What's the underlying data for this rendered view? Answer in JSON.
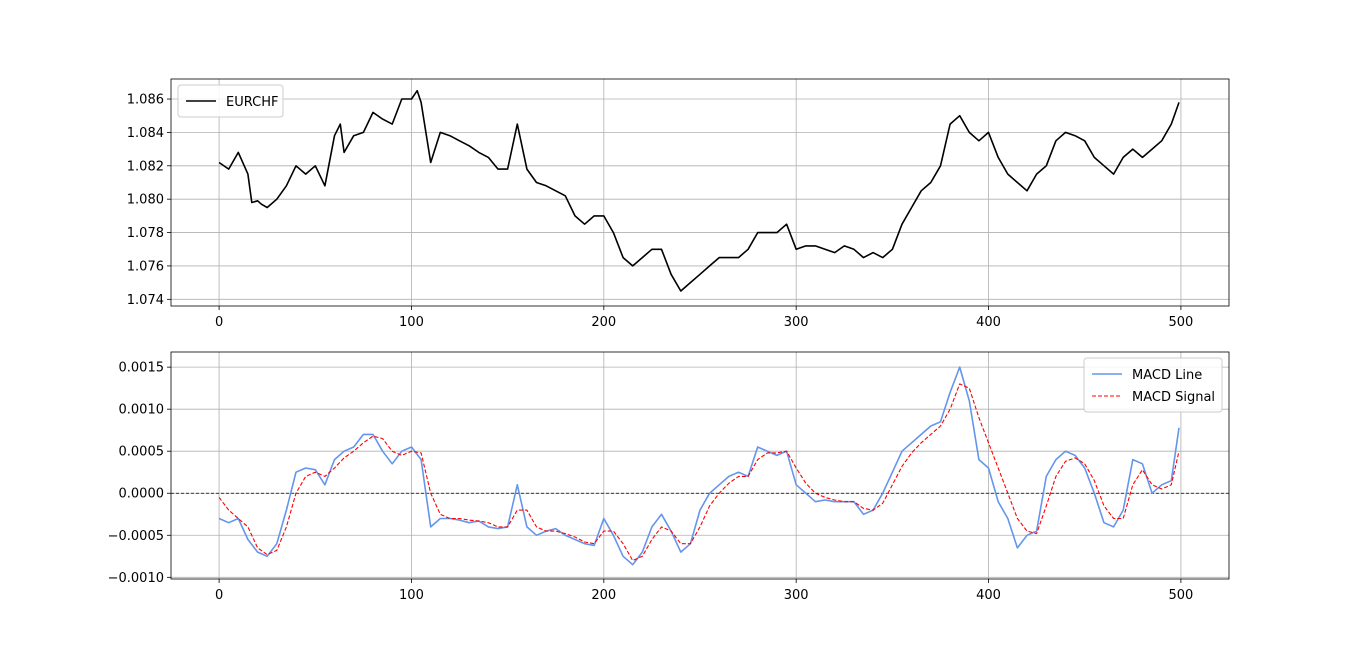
{
  "chart_data": [
    {
      "type": "line",
      "title": "",
      "xlabel": "",
      "ylabel": "",
      "xlim": [
        -25,
        525
      ],
      "ylim": [
        1.0736,
        1.0872
      ],
      "grid": true,
      "legend_position": "top-left",
      "x_ticks": [
        0,
        100,
        200,
        300,
        400,
        500
      ],
      "x_tick_labels": [
        "0",
        "100",
        "200",
        "300",
        "400",
        "500"
      ],
      "y_ticks": [
        1.074,
        1.076,
        1.078,
        1.08,
        1.082,
        1.084,
        1.086
      ],
      "y_tick_labels": [
        "1.074",
        "1.076",
        "1.078",
        "1.080",
        "1.082",
        "1.084",
        "1.086"
      ],
      "series": [
        {
          "name": "EURCHF",
          "color": "#000000",
          "dash": "solid",
          "x": [
            0,
            5,
            10,
            15,
            17,
            20,
            22,
            25,
            30,
            35,
            40,
            45,
            50,
            55,
            60,
            63,
            65,
            70,
            75,
            80,
            85,
            90,
            95,
            100,
            103,
            105,
            110,
            115,
            120,
            125,
            130,
            135,
            140,
            145,
            150,
            155,
            160,
            165,
            170,
            175,
            180,
            185,
            190,
            195,
            200,
            205,
            210,
            215,
            220,
            225,
            230,
            235,
            240,
            245,
            250,
            255,
            260,
            265,
            270,
            275,
            280,
            285,
            290,
            295,
            300,
            305,
            310,
            315,
            320,
            325,
            330,
            335,
            340,
            345,
            350,
            355,
            360,
            365,
            370,
            375,
            380,
            385,
            390,
            395,
            400,
            405,
            410,
            415,
            420,
            425,
            430,
            435,
            440,
            445,
            450,
            455,
            460,
            465,
            470,
            475,
            480,
            485,
            490,
            495,
            499
          ],
          "values": [
            1.0822,
            1.0818,
            1.0828,
            1.0815,
            1.0798,
            1.0799,
            1.0797,
            1.0795,
            1.08,
            1.0808,
            1.082,
            1.0815,
            1.082,
            1.0808,
            1.0838,
            1.0845,
            1.0828,
            1.0838,
            1.084,
            1.0852,
            1.0848,
            1.0845,
            1.086,
            1.086,
            1.0865,
            1.0858,
            1.0822,
            1.084,
            1.0838,
            1.0835,
            1.0832,
            1.0828,
            1.0825,
            1.0818,
            1.0818,
            1.0845,
            1.0818,
            1.081,
            1.0808,
            1.0805,
            1.0802,
            1.079,
            1.0785,
            1.079,
            1.079,
            1.078,
            1.0765,
            1.076,
            1.0765,
            1.077,
            1.077,
            1.0755,
            1.0745,
            1.075,
            1.0755,
            1.076,
            1.0765,
            1.0765,
            1.0765,
            1.077,
            1.078,
            1.078,
            1.078,
            1.0785,
            1.077,
            1.0772,
            1.0772,
            1.077,
            1.0768,
            1.0772,
            1.077,
            1.0765,
            1.0768,
            1.0765,
            1.077,
            1.0785,
            1.0795,
            1.0805,
            1.081,
            1.082,
            1.0845,
            1.085,
            1.084,
            1.0835,
            1.084,
            1.0825,
            1.0815,
            1.081,
            1.0805,
            1.0815,
            1.082,
            1.0835,
            1.084,
            1.0838,
            1.0835,
            1.0825,
            1.082,
            1.0815,
            1.0825,
            1.083,
            1.0825,
            1.083,
            1.0835,
            1.0845,
            1.0858
          ]
        }
      ]
    },
    {
      "type": "line",
      "title": "",
      "xlabel": "",
      "ylabel": "",
      "xlim": [
        -25,
        525
      ],
      "ylim": [
        -0.00102,
        0.00168
      ],
      "grid": true,
      "legend_position": "top-right",
      "zero_line": {
        "y": 0,
        "color": "#000000",
        "dash": "dashed"
      },
      "x_ticks": [
        0,
        100,
        200,
        300,
        400,
        500
      ],
      "x_tick_labels": [
        "0",
        "100",
        "200",
        "300",
        "400",
        "500"
      ],
      "y_ticks": [
        -0.001,
        -0.0005,
        0.0,
        0.0005,
        0.001,
        0.0015
      ],
      "y_tick_labels": [
        "−0.0010",
        "−0.0005",
        "0.0000",
        "0.0005",
        "0.0010",
        "0.0015"
      ],
      "series": [
        {
          "name": "MACD Line",
          "color": "#6495ed",
          "dash": "solid",
          "x": [
            0,
            5,
            10,
            15,
            20,
            25,
            30,
            35,
            40,
            45,
            50,
            55,
            60,
            65,
            70,
            75,
            80,
            85,
            90,
            95,
            100,
            105,
            110,
            115,
            120,
            125,
            130,
            135,
            140,
            145,
            150,
            155,
            160,
            165,
            170,
            175,
            180,
            185,
            190,
            195,
            200,
            205,
            210,
            215,
            220,
            225,
            230,
            235,
            240,
            245,
            250,
            255,
            260,
            265,
            270,
            275,
            280,
            285,
            290,
            295,
            300,
            305,
            310,
            315,
            320,
            325,
            330,
            335,
            340,
            345,
            350,
            355,
            360,
            365,
            370,
            375,
            380,
            385,
            390,
            395,
            400,
            405,
            410,
            415,
            420,
            425,
            430,
            435,
            440,
            445,
            450,
            455,
            460,
            465,
            470,
            475,
            480,
            485,
            490,
            495,
            499
          ],
          "values": [
            -0.0003,
            -0.00035,
            -0.0003,
            -0.00055,
            -0.0007,
            -0.00075,
            -0.0006,
            -0.0002,
            0.00025,
            0.0003,
            0.00028,
            0.0001,
            0.0004,
            0.0005,
            0.00055,
            0.0007,
            0.0007,
            0.0005,
            0.00035,
            0.0005,
            0.00055,
            0.0004,
            -0.0004,
            -0.0003,
            -0.0003,
            -0.00032,
            -0.00035,
            -0.00033,
            -0.0004,
            -0.00042,
            -0.0004,
            0.0001,
            -0.0004,
            -0.0005,
            -0.00045,
            -0.00042,
            -0.0005,
            -0.00055,
            -0.0006,
            -0.00062,
            -0.0003,
            -0.0005,
            -0.00075,
            -0.00085,
            -0.0007,
            -0.0004,
            -0.00025,
            -0.00045,
            -0.0007,
            -0.0006,
            -0.0002,
            0.0,
            0.0001,
            0.0002,
            0.00025,
            0.0002,
            0.00055,
            0.0005,
            0.00045,
            0.0005,
            0.0001,
            0.0,
            -0.0001,
            -8e-05,
            -0.0001,
            -0.0001,
            -0.0001,
            -0.00025,
            -0.0002,
            0.0,
            0.00025,
            0.0005,
            0.0006,
            0.0007,
            0.0008,
            0.00085,
            0.0012,
            0.0015,
            0.0011,
            0.0004,
            0.0003,
            -0.0001,
            -0.0003,
            -0.00065,
            -0.0005,
            -0.00045,
            0.0002,
            0.0004,
            0.0005,
            0.00045,
            0.0003,
            0.0,
            -0.00035,
            -0.0004,
            -0.0002,
            0.0004,
            0.00035,
            0.0,
            0.0001,
            0.00015,
            0.00078
          ]
        },
        {
          "name": "MACD Signal",
          "color": "#ff0000",
          "dash": "dashed",
          "x": [
            0,
            5,
            10,
            15,
            20,
            25,
            30,
            35,
            40,
            45,
            50,
            55,
            60,
            65,
            70,
            75,
            80,
            85,
            90,
            95,
            100,
            105,
            110,
            115,
            120,
            125,
            130,
            135,
            140,
            145,
            150,
            155,
            160,
            165,
            170,
            175,
            180,
            185,
            190,
            195,
            200,
            205,
            210,
            215,
            220,
            225,
            230,
            235,
            240,
            245,
            250,
            255,
            260,
            265,
            270,
            275,
            280,
            285,
            290,
            295,
            300,
            305,
            310,
            315,
            320,
            325,
            330,
            335,
            340,
            345,
            350,
            355,
            360,
            365,
            370,
            375,
            380,
            385,
            390,
            395,
            400,
            405,
            410,
            415,
            420,
            425,
            430,
            435,
            440,
            445,
            450,
            455,
            460,
            465,
            470,
            475,
            480,
            485,
            490,
            495,
            499
          ],
          "values": [
            -5e-05,
            -0.0002,
            -0.0003,
            -0.0004,
            -0.00065,
            -0.00073,
            -0.00068,
            -0.0004,
            0.0,
            0.0002,
            0.00025,
            0.0002,
            0.0003,
            0.00042,
            0.0005,
            0.0006,
            0.00068,
            0.00065,
            0.0005,
            0.00045,
            0.0005,
            0.00048,
            0.0,
            -0.00025,
            -0.0003,
            -0.0003,
            -0.00032,
            -0.00033,
            -0.00035,
            -0.0004,
            -0.0004,
            -0.0002,
            -0.0002,
            -0.0004,
            -0.00045,
            -0.00045,
            -0.00048,
            -0.00052,
            -0.00058,
            -0.0006,
            -0.00045,
            -0.00045,
            -0.0006,
            -0.0008,
            -0.00075,
            -0.00055,
            -0.0004,
            -0.00045,
            -0.0006,
            -0.0006,
            -0.0004,
            -0.00015,
            0.0,
            0.00012,
            0.0002,
            0.0002,
            0.0004,
            0.00048,
            0.00048,
            0.0005,
            0.0003,
            0.00012,
            0.0,
            -5e-05,
            -8e-05,
            -0.0001,
            -0.0001,
            -0.00018,
            -0.0002,
            -0.00012,
            0.0001,
            0.00032,
            0.00048,
            0.0006,
            0.0007,
            0.0008,
            0.001,
            0.0013,
            0.00125,
            0.0009,
            0.0006,
            0.0003,
            0.0,
            -0.0003,
            -0.00045,
            -0.00048,
            -0.00015,
            0.0002,
            0.00038,
            0.00042,
            0.00035,
            0.00015,
            -0.00015,
            -0.0003,
            -0.0003,
            0.0001,
            0.00028,
            0.0001,
            5e-05,
            0.0001,
            0.0005
          ]
        }
      ]
    }
  ]
}
